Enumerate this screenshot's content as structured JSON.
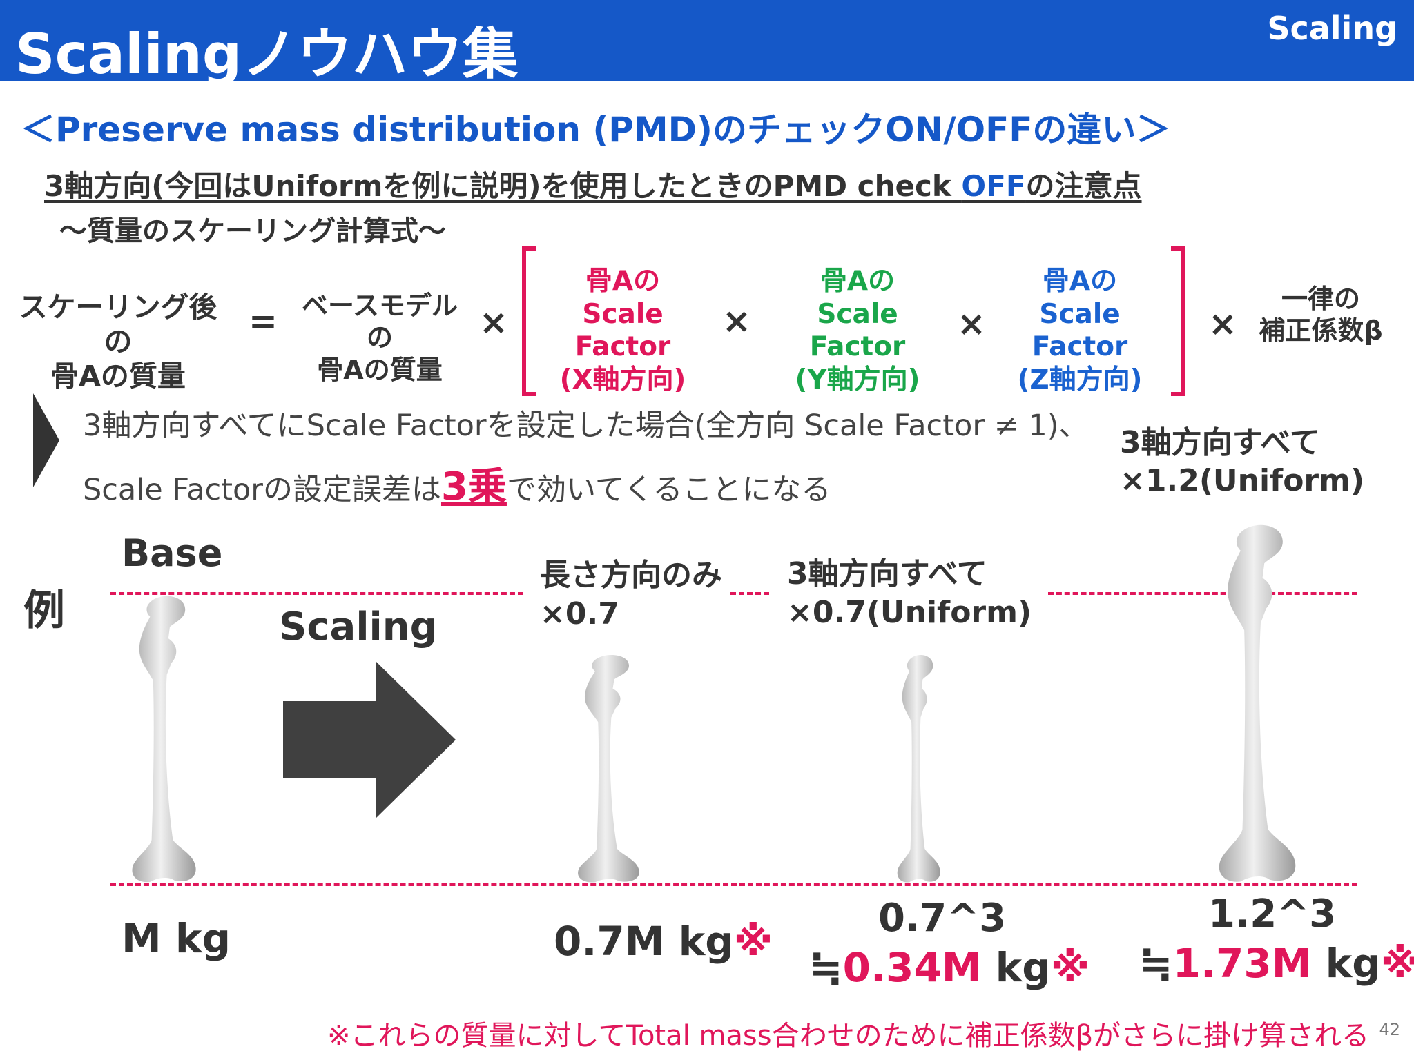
{
  "header": {
    "title": "Scalingノウハウ集",
    "tag": "Scaling"
  },
  "section_title": "＜Preserve mass distribution (PMD)のチェックON/OFFの違い＞",
  "subheading": {
    "pre": "3軸方向(今回はUniformを例に説明)を使用したときのPMD check ",
    "highlight": "OFF",
    "post": "の注意点"
  },
  "formula_title": "～質量のスケーリング計算式～",
  "formula": {
    "lhs": [
      "スケーリング後の",
      "骨Aの質量"
    ],
    "equals": "=",
    "base": [
      "ベースモデルの",
      "骨Aの質量"
    ],
    "times": "×",
    "factors": [
      {
        "lines": [
          "骨Aの",
          "Scale Factor",
          "(X軸方向)"
        ],
        "color": "#e0165a"
      },
      {
        "lines": [
          "骨Aの",
          "Scale Factor",
          "(Y軸方向)"
        ],
        "color": "#1aa64a"
      },
      {
        "lines": [
          "骨Aの",
          "Scale Factor",
          "(Z軸方向)"
        ],
        "color": "#1a62d0"
      }
    ],
    "correction": [
      "一律の",
      "補正係数β"
    ]
  },
  "bullet": {
    "line1": "3軸方向すべてにScale Factorを設定した場合(全方向 Scale Factor ≠ 1)、",
    "line2_pre": "Scale Factorの設定誤差は",
    "line2_em": "3乗",
    "line2_post": "で効いてくることになる"
  },
  "example": {
    "label": "例",
    "base_label": "Base",
    "scaling_label": "Scaling",
    "case1": {
      "label": [
        "長さ方向のみ",
        "×0.7"
      ]
    },
    "case2": {
      "label": [
        "3軸方向すべて",
        "×0.7(Uniform)"
      ]
    },
    "case3": {
      "label": [
        "3軸方向すべて",
        "×1.2(Uniform)"
      ]
    },
    "mass_base": "M kg",
    "mass1_main": "0.7M kg",
    "mass1_mark": "※",
    "mass2_top": "0.7^3",
    "mass2_approx": "≒",
    "mass2_value": "0.34M",
    "mass2_unit": " kg",
    "mass2_mark": "※",
    "mass3_top": "1.2^3",
    "mass3_approx": "≒",
    "mass3_value": "1.73M",
    "mass3_unit": " kg",
    "mass3_mark": "※"
  },
  "footnote": "※これらの質量に対してTotal mass合わせのために補正係数βがさらに掛け算される",
  "page_number": "42"
}
